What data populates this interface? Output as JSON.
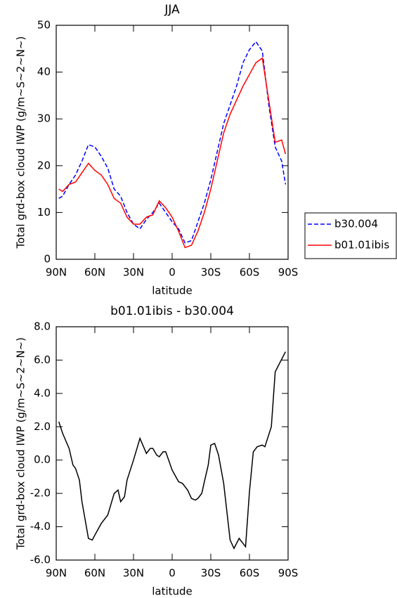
{
  "chart_data": [
    {
      "type": "line",
      "title": "JJA",
      "xlabel": "latitude",
      "ylabel": "Total grd-box cloud IWP (g/m~S~2~N~)",
      "x": [
        88,
        85,
        80,
        75,
        70,
        65,
        60,
        55,
        50,
        45,
        40,
        35,
        30,
        25,
        20,
        15,
        10,
        5,
        0,
        -5,
        -10,
        -15,
        -20,
        -25,
        -30,
        -35,
        -40,
        -45,
        -50,
        -55,
        -60,
        -65,
        -70,
        -75,
        -80,
        -85,
        -88
      ],
      "series": [
        {
          "name": "b30.004",
          "color": "#0000ff",
          "dash": true,
          "values": [
            13,
            13.5,
            16,
            18,
            21,
            24.5,
            24,
            22,
            19.5,
            15,
            13.5,
            10,
            7.5,
            6.5,
            8.5,
            10,
            12,
            10,
            8,
            6.5,
            3.5,
            4,
            8,
            12,
            17,
            23,
            29,
            33,
            37,
            42,
            44.8,
            46.5,
            44.5,
            33,
            24,
            21,
            16
          ]
        },
        {
          "name": "b01.01ibis",
          "color": "#ff0000",
          "dash": false,
          "values": [
            15,
            14.5,
            16,
            16.5,
            18.5,
            20.5,
            19,
            18,
            16,
            13,
            12,
            9,
            7.5,
            7.5,
            9,
            9.5,
            12.5,
            11,
            9,
            6,
            2.5,
            3,
            6,
            10,
            15,
            21,
            27,
            31,
            34,
            37,
            39.5,
            42,
            43,
            34,
            25,
            25.5,
            22.5
          ]
        }
      ],
      "xlim": [
        90,
        -90
      ],
      "xticks": [
        {
          "value": 90,
          "label": "90N"
        },
        {
          "value": 60,
          "label": "60N"
        },
        {
          "value": 30,
          "label": "30N"
        },
        0,
        {
          "value": -30,
          "label": "30S"
        },
        {
          "value": -60,
          "label": "60S"
        },
        {
          "value": -90,
          "label": "90S"
        }
      ],
      "ylim": [
        0,
        50
      ],
      "yticks": [
        0,
        10,
        20,
        30,
        40,
        50
      ],
      "legend": "right"
    },
    {
      "type": "line",
      "title": "b01.01ibis - b30.004",
      "xlabel": "latitude",
      "ylabel": "Total grd-box cloud IWP (g/m~S~2~N~)",
      "x": [
        88,
        85,
        80,
        77,
        75,
        72,
        70,
        65,
        62,
        60,
        55,
        50,
        45,
        42,
        40,
        37,
        35,
        30,
        25,
        20,
        17,
        15,
        12,
        10,
        7,
        5,
        0,
        -5,
        -8,
        -12,
        -15,
        -18,
        -20,
        -23,
        -25,
        -28,
        -30,
        -33,
        -36,
        -40,
        -45,
        -48,
        -52,
        -57,
        -60,
        -63,
        -66,
        -70,
        -72,
        -77,
        -80,
        -88
      ],
      "series": [
        {
          "name": "b01.01ibis - b30.004",
          "color": "#000000",
          "dash": false,
          "values": [
            2.3,
            1.6,
            0.7,
            -0.3,
            -0.5,
            -1.2,
            -2.5,
            -4.7,
            -4.8,
            -4.5,
            -3.8,
            -3.3,
            -2,
            -1.8,
            -2.5,
            -2.2,
            -1.2,
            0,
            1.3,
            0.4,
            0.7,
            0.7,
            0.3,
            0.2,
            0.5,
            0.5,
            -0.6,
            -1.3,
            -1.4,
            -1.8,
            -2.3,
            -2.4,
            -2.3,
            -2,
            -1.3,
            -0.3,
            0.9,
            1.0,
            0.3,
            -1.4,
            -4.8,
            -5.3,
            -4.7,
            -5.2,
            -1.9,
            0.5,
            0.8,
            0.9,
            0.8,
            2.0,
            5.3,
            6.5
          ]
        }
      ],
      "xlim": [
        90,
        -90
      ],
      "xticks": [
        {
          "value": 90,
          "label": "90N"
        },
        {
          "value": 60,
          "label": "60N"
        },
        {
          "value": 30,
          "label": "30N"
        },
        0,
        {
          "value": -30,
          "label": "30S"
        },
        {
          "value": -60,
          "label": "60S"
        },
        {
          "value": -90,
          "label": "90S"
        }
      ],
      "ylim": [
        -6,
        8
      ],
      "yticks": [
        {
          "value": -6,
          "label": "-6.0"
        },
        {
          "value": -4,
          "label": "-4.0"
        },
        {
          "value": -2,
          "label": "-2.0"
        },
        {
          "value": 0,
          "label": "0.0"
        },
        {
          "value": 2,
          "label": "2.0"
        },
        {
          "value": 4,
          "label": "4.0"
        },
        {
          "value": 6,
          "label": "6.0"
        },
        {
          "value": 8,
          "label": "8.0"
        }
      ]
    }
  ]
}
